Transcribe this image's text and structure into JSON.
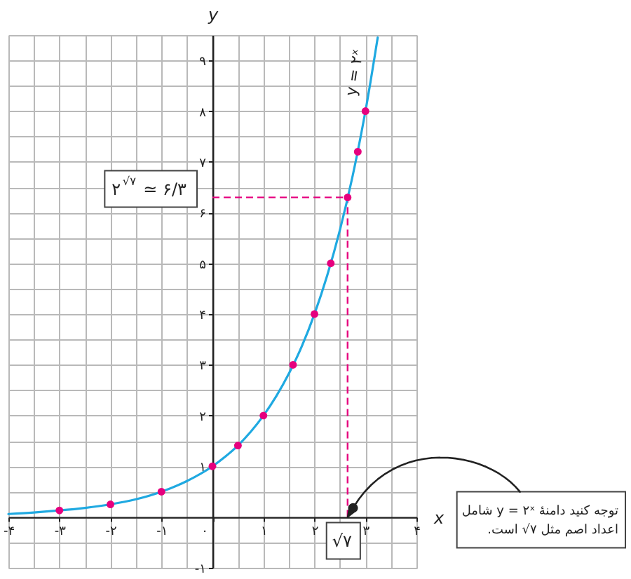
{
  "chart_data": {
    "type": "line",
    "xlabel": "x",
    "ylabel": "y",
    "xlim": [
      -4,
      4
    ],
    "ylim": [
      -1,
      9.5
    ],
    "xticks": [
      {
        "value": -4,
        "label": "-۴"
      },
      {
        "value": -3.5,
        "label": null
      },
      {
        "value": -3,
        "label": "-۳"
      },
      {
        "value": -2.5,
        "label": null
      },
      {
        "value": -2,
        "label": "-۲"
      },
      {
        "value": -1.5,
        "label": null
      },
      {
        "value": -1,
        "label": "-۱"
      },
      {
        "value": -0.5,
        "label": null
      },
      {
        "value": 0,
        "label": "۰"
      },
      {
        "value": 0.5,
        "label": null
      },
      {
        "value": 1,
        "label": "۱"
      },
      {
        "value": 1.5,
        "label": null
      },
      {
        "value": 2,
        "label": "۲"
      },
      {
        "value": 2.5,
        "label": null
      },
      {
        "value": 3,
        "label": "۳"
      },
      {
        "value": 3.5,
        "label": null
      },
      {
        "value": 4,
        "label": "۴"
      }
    ],
    "yticks": [
      {
        "value": -1,
        "label": "-۱"
      },
      {
        "value": -0.5,
        "label": null
      },
      {
        "value": 0,
        "label": null
      },
      {
        "value": 0.5,
        "label": null
      },
      {
        "value": 1,
        "label": "۱"
      },
      {
        "value": 1.5,
        "label": null
      },
      {
        "value": 2,
        "label": "۲"
      },
      {
        "value": 2.5,
        "label": null
      },
      {
        "value": 3,
        "label": "۳"
      },
      {
        "value": 3.5,
        "label": null
      },
      {
        "value": 4,
        "label": "۴"
      },
      {
        "value": 4.5,
        "label": null
      },
      {
        "value": 5,
        "label": "۵"
      },
      {
        "value": 5.5,
        "label": null
      },
      {
        "value": 6,
        "label": "۶"
      },
      {
        "value": 6.5,
        "label": null
      },
      {
        "value": 7,
        "label": "۷"
      },
      {
        "value": 7.5,
        "label": null
      },
      {
        "value": 8,
        "label": "۸"
      },
      {
        "value": 8.5,
        "label": null
      },
      {
        "value": 9,
        "label": "۹"
      },
      {
        "value": 9.5,
        "label": null
      }
    ],
    "grid": true,
    "series": [
      {
        "name": "y = ۲ˣ",
        "color": "#1fa9e1",
        "x": [
          -4,
          -3.5,
          -3,
          -2.5,
          -2,
          -1.5,
          -1,
          -0.5,
          0,
          0.25,
          0.5,
          0.75,
          1,
          1.25,
          1.5,
          1.75,
          2,
          2.25,
          2.5,
          2.75,
          3,
          3.24
        ],
        "values": [
          0.06,
          0.09,
          0.13,
          0.18,
          0.25,
          0.35,
          0.5,
          0.71,
          1,
          1.19,
          1.41,
          1.68,
          2,
          2.38,
          2.83,
          3.36,
          4,
          4.76,
          5.66,
          6.73,
          8,
          9.45
        ]
      },
      {
        "type": "scatter",
        "color": "#e6007e",
        "marker": "circle",
        "x": [
          -3,
          -2,
          -1,
          0,
          0.5,
          1,
          1.58,
          2,
          2.32,
          2.65,
          2.85,
          3
        ],
        "values": [
          0.13,
          0.25,
          0.5,
          1,
          1.41,
          2,
          3,
          4,
          5,
          6.3,
          7.2,
          8
        ]
      }
    ],
    "ref_lines": [
      {
        "axis": "y",
        "value": 6.3,
        "label": "۲$^{√۷}$ ≃ ۶/۳",
        "color": "#e6007e",
        "line_style": "dashed"
      },
      {
        "axis": "x",
        "value": 2.65,
        "label": "√۷",
        "color": "#e6007e",
        "line_style": "dashed"
      }
    ],
    "annotations": [
      "توجه کنید دامنهٔ y = ۲ˣ شامل\nاعداد اصم مثل √۷ است."
    ]
  }
}
